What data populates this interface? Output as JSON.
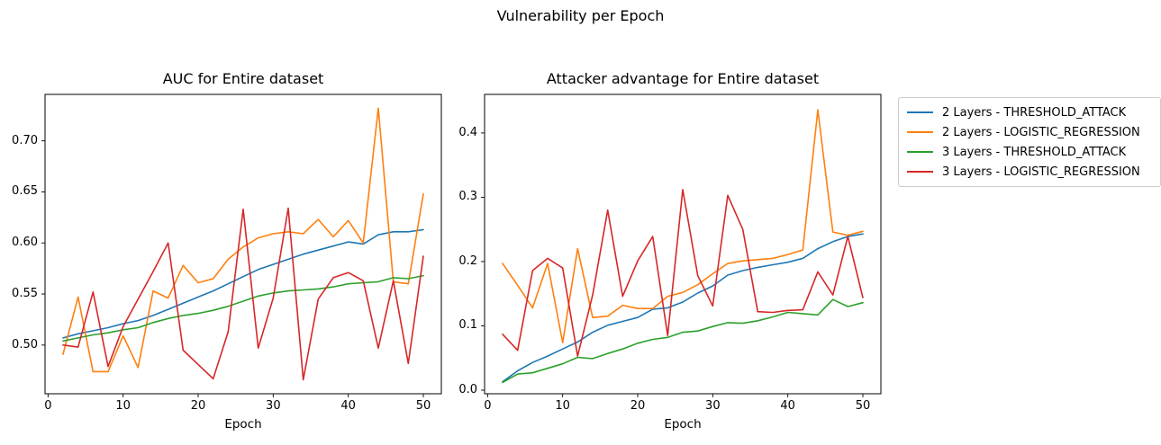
{
  "figure": {
    "suptitle": "Vulnerability per Epoch",
    "background_color": "#ffffff",
    "text_color": "#000000",
    "spine_color": "#000000"
  },
  "legend": {
    "position": "outside-top-right",
    "border_color": "#cccccc"
  },
  "chart_data": [
    {
      "id": "auc",
      "type": "line",
      "title": "AUC for Entire dataset",
      "xlabel": "Epoch",
      "grid": false,
      "xlim": [
        -0.4,
        52.4
      ],
      "ylim": [
        0.4523,
        0.7455
      ],
      "xticks": [
        0,
        10,
        20,
        30,
        40,
        50
      ],
      "xticklabels": [
        "0",
        "10",
        "20",
        "30",
        "40",
        "50"
      ],
      "yticks": [
        0.5,
        0.55,
        0.6,
        0.65,
        0.7
      ],
      "yticklabels": [
        "0.50",
        "0.55",
        "0.60",
        "0.65",
        "0.70"
      ],
      "x": [
        2,
        4,
        6,
        8,
        10,
        12,
        14,
        16,
        18,
        20,
        22,
        24,
        26,
        28,
        30,
        32,
        34,
        36,
        38,
        40,
        42,
        44,
        46,
        48,
        50
      ],
      "series": [
        {
          "name": "2 Layers - THRESHOLD_ATTACK",
          "color": "#1f77b4",
          "values": [
            0.507,
            0.511,
            0.514,
            0.517,
            0.521,
            0.524,
            0.529,
            0.535,
            0.541,
            0.547,
            0.553,
            0.56,
            0.567,
            0.574,
            0.579,
            0.584,
            0.589,
            0.593,
            0.597,
            0.601,
            0.599,
            0.608,
            0.611,
            0.611,
            0.613
          ]
        },
        {
          "name": "2 Layers - LOGISTIC_REGRESSION",
          "color": "#ff7f0e",
          "values": [
            0.491,
            0.547,
            0.474,
            0.474,
            0.509,
            0.478,
            0.553,
            0.546,
            0.578,
            0.561,
            0.565,
            0.584,
            0.596,
            0.605,
            0.609,
            0.611,
            0.609,
            0.623,
            0.606,
            0.622,
            0.6,
            0.732,
            0.562,
            0.56,
            0.648
          ]
        },
        {
          "name": "3 Layers - THRESHOLD_ATTACK",
          "color": "#2ca02c",
          "values": [
            0.504,
            0.507,
            0.51,
            0.512,
            0.515,
            0.517,
            0.522,
            0.526,
            0.529,
            0.531,
            0.534,
            0.538,
            0.543,
            0.548,
            0.551,
            0.553,
            0.554,
            0.555,
            0.557,
            0.56,
            0.561,
            0.562,
            0.566,
            0.565,
            0.568
          ]
        },
        {
          "name": "3 Layers - LOGISTIC_REGRESSION",
          "color": "#d62728",
          "values": [
            0.5,
            0.498,
            0.552,
            0.479,
            0.518,
            0.545,
            0.572,
            0.6,
            0.495,
            0.481,
            0.467,
            0.513,
            0.633,
            0.497,
            0.546,
            0.634,
            0.466,
            0.545,
            0.566,
            0.571,
            0.563,
            0.497,
            0.563,
            0.482,
            0.587
          ]
        }
      ]
    },
    {
      "id": "attacker-advantage",
      "type": "line",
      "title": "Attacker advantage for Entire dataset",
      "xlabel": "Epoch",
      "grid": false,
      "xlim": [
        -0.4,
        52.4
      ],
      "ylim": [
        -0.0056,
        0.46
      ],
      "xticks": [
        0,
        10,
        20,
        30,
        40,
        50
      ],
      "xticklabels": [
        "0",
        "10",
        "20",
        "30",
        "40",
        "50"
      ],
      "yticks": [
        0.0,
        0.1,
        0.2,
        0.3,
        0.4
      ],
      "yticklabels": [
        "0.0",
        "0.1",
        "0.2",
        "0.3",
        "0.4"
      ],
      "x": [
        2,
        4,
        6,
        8,
        10,
        12,
        14,
        16,
        18,
        20,
        22,
        24,
        26,
        28,
        30,
        32,
        34,
        36,
        38,
        40,
        42,
        44,
        46,
        48,
        50
      ],
      "series": [
        {
          "name": "2 Layers - THRESHOLD_ATTACK",
          "color": "#1f77b4",
          "values": [
            0.013,
            0.03,
            0.043,
            0.053,
            0.064,
            0.075,
            0.09,
            0.101,
            0.107,
            0.113,
            0.126,
            0.128,
            0.137,
            0.151,
            0.162,
            0.179,
            0.186,
            0.191,
            0.195,
            0.199,
            0.205,
            0.22,
            0.231,
            0.239,
            0.243
          ]
        },
        {
          "name": "2 Layers - LOGISTIC_REGRESSION",
          "color": "#ff7f0e",
          "values": [
            0.197,
            0.163,
            0.128,
            0.197,
            0.074,
            0.22,
            0.113,
            0.115,
            0.132,
            0.127,
            0.127,
            0.146,
            0.152,
            0.164,
            0.181,
            0.197,
            0.201,
            0.203,
            0.205,
            0.211,
            0.218,
            0.436,
            0.246,
            0.241,
            0.247
          ]
        },
        {
          "name": "3 Layers - THRESHOLD_ATTACK",
          "color": "#2ca02c",
          "values": [
            0.012,
            0.025,
            0.027,
            0.034,
            0.041,
            0.051,
            0.049,
            0.057,
            0.064,
            0.073,
            0.079,
            0.082,
            0.09,
            0.092,
            0.099,
            0.105,
            0.104,
            0.108,
            0.114,
            0.121,
            0.119,
            0.117,
            0.141,
            0.13,
            0.136
          ]
        },
        {
          "name": "3 Layers - LOGISTIC_REGRESSION",
          "color": "#d62728",
          "values": [
            0.087,
            0.062,
            0.186,
            0.205,
            0.19,
            0.053,
            0.148,
            0.28,
            0.146,
            0.201,
            0.239,
            0.085,
            0.312,
            0.178,
            0.131,
            0.303,
            0.25,
            0.122,
            0.121,
            0.124,
            0.125,
            0.184,
            0.148,
            0.239,
            0.144
          ]
        }
      ]
    }
  ]
}
